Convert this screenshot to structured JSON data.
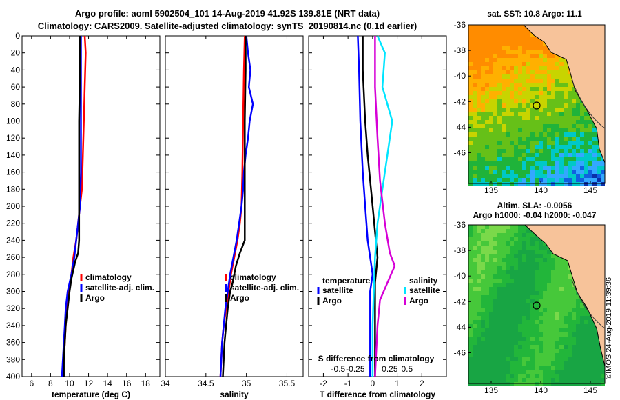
{
  "header": {
    "line1": "Argo profile: aoml 5902504_101 14-Aug-2019 41.92S 139.81E (NRT data)",
    "line2": "Climatology: CARS2009. Satellite-adjusted climatology: synTS_20190814.nc (0.1d earlier)"
  },
  "credit": "©IMOS 24-Aug-2019 11:39:36",
  "colors": {
    "clim": "#ff0000",
    "sat": "#0000ff",
    "argo": "#000000",
    "sat_s": "#00e5ff",
    "argo_s": "#d600d6"
  },
  "chart_data": [
    {
      "type": "line",
      "name": "temperature",
      "xlabel": "temperature (deg C)",
      "xlim": [
        5,
        19.5
      ],
      "xticks": [
        6,
        8,
        10,
        12,
        14,
        16,
        18
      ],
      "xticklabels": [
        "6",
        "8",
        "10",
        "12",
        "14",
        "16",
        "18"
      ],
      "ylim": [
        0,
        400
      ],
      "yticklabels": [
        "0",
        "20",
        "40",
        "60",
        "80",
        "100",
        "120",
        "140",
        "160",
        "180",
        "200",
        "220",
        "240",
        "260",
        "280",
        "300",
        "320",
        "340",
        "360",
        "380",
        "400"
      ],
      "legend": [
        "climatology",
        "satellite-adj. clim.",
        "Argo"
      ],
      "series": [
        {
          "name": "climatology",
          "color": "clim",
          "points": [
            [
              11.6,
              0
            ],
            [
              11.7,
              20
            ],
            [
              11.6,
              60
            ],
            [
              11.5,
              100
            ],
            [
              11.4,
              140
            ],
            [
              11.3,
              180
            ],
            [
              11.1,
              200
            ],
            [
              10.9,
              220
            ],
            [
              10.7,
              240
            ],
            [
              10.4,
              260
            ],
            [
              10.2,
              280
            ],
            [
              9.9,
              300
            ],
            [
              9.7,
              320
            ],
            [
              9.6,
              340
            ],
            [
              9.5,
              360
            ],
            [
              9.4,
              380
            ],
            [
              9.3,
              400
            ]
          ]
        },
        {
          "name": "satellite-adj. clim.",
          "color": "sat",
          "points": [
            [
              11.2,
              0
            ],
            [
              11.2,
              40
            ],
            [
              11.2,
              100
            ],
            [
              11.2,
              160
            ],
            [
              11.1,
              200
            ],
            [
              10.9,
              220
            ],
            [
              10.7,
              240
            ],
            [
              10.5,
              260
            ],
            [
              10.2,
              280
            ],
            [
              9.8,
              300
            ],
            [
              9.6,
              320
            ],
            [
              9.5,
              340
            ],
            [
              9.4,
              360
            ],
            [
              9.3,
              380
            ],
            [
              9.2,
              400
            ]
          ]
        },
        {
          "name": "Argo",
          "color": "argo",
          "points": [
            [
              11.1,
              0
            ],
            [
              11.1,
              40
            ],
            [
              11.0,
              100
            ],
            [
              11.0,
              160
            ],
            [
              11.0,
              200
            ],
            [
              11.0,
              220
            ],
            [
              11.0,
              240
            ],
            [
              10.9,
              255
            ],
            [
              10.6,
              265
            ],
            [
              10.2,
              285
            ],
            [
              10.0,
              300
            ],
            [
              9.8,
              320
            ],
            [
              9.6,
              340
            ],
            [
              9.5,
              360
            ],
            [
              9.4,
              380
            ],
            [
              9.4,
              400
            ]
          ]
        }
      ]
    },
    {
      "type": "line",
      "name": "salinity",
      "xlabel": "salinity",
      "xlim": [
        34,
        35.7
      ],
      "xticks": [
        34,
        34.5,
        35,
        35.5
      ],
      "xticklabels": [
        "34",
        "34.5",
        "35",
        "35.5"
      ],
      "ylim": [
        0,
        400
      ],
      "legend": [
        "climatology",
        "satellite-adj. clim.",
        "Argo"
      ],
      "series": [
        {
          "name": "climatology",
          "color": "clim",
          "points": [
            [
              34.98,
              0
            ],
            [
              34.97,
              40
            ],
            [
              34.96,
              100
            ],
            [
              34.95,
              160
            ],
            [
              34.94,
              200
            ],
            [
              34.92,
              220
            ],
            [
              34.89,
              240
            ],
            [
              34.85,
              260
            ],
            [
              34.81,
              280
            ],
            [
              34.78,
              300
            ],
            [
              34.75,
              320
            ],
            [
              34.72,
              340
            ],
            [
              34.7,
              360
            ],
            [
              34.69,
              380
            ],
            [
              34.68,
              400
            ]
          ]
        },
        {
          "name": "satellite-adj. clim.",
          "color": "sat",
          "points": [
            [
              35.0,
              0
            ],
            [
              35.02,
              20
            ],
            [
              35.05,
              40
            ],
            [
              35.03,
              60
            ],
            [
              35.08,
              80
            ],
            [
              35.04,
              100
            ],
            [
              35.02,
              120
            ],
            [
              34.99,
              140
            ],
            [
              34.97,
              160
            ],
            [
              34.96,
              180
            ],
            [
              34.94,
              200
            ],
            [
              34.91,
              220
            ],
            [
              34.88,
              240
            ],
            [
              34.84,
              260
            ],
            [
              34.8,
              280
            ],
            [
              34.77,
              300
            ],
            [
              34.74,
              320
            ],
            [
              34.72,
              340
            ],
            [
              34.7,
              360
            ],
            [
              34.69,
              380
            ],
            [
              34.68,
              400
            ]
          ]
        },
        {
          "name": "Argo",
          "color": "argo",
          "points": [
            [
              34.99,
              0
            ],
            [
              34.99,
              40
            ],
            [
              34.98,
              100
            ],
            [
              34.98,
              160
            ],
            [
              34.98,
              200
            ],
            [
              34.98,
              220
            ],
            [
              34.98,
              240
            ],
            [
              34.92,
              255
            ],
            [
              34.87,
              270
            ],
            [
              34.83,
              290
            ],
            [
              34.8,
              300
            ],
            [
              34.77,
              320
            ],
            [
              34.75,
              340
            ],
            [
              34.73,
              360
            ],
            [
              34.72,
              380
            ],
            [
              34.71,
              400
            ]
          ]
        }
      ]
    },
    {
      "type": "line",
      "name": "difference",
      "xlabel": "T difference from climatology",
      "xlabel2": "S difference from climatology",
      "xlim": [
        -2.6,
        3.0
      ],
      "xticks": [
        -2,
        -1,
        0,
        1,
        2
      ],
      "xticklabels": [
        "-2",
        "-1",
        "0",
        "1",
        "2"
      ],
      "sxticks": [
        -1.4,
        -0.7,
        0.7,
        1.4
      ],
      "sxticklabels": [
        "-0.5",
        "-0.25",
        "0.25",
        "0.5"
      ],
      "ylim": [
        0,
        400
      ],
      "legend_t_title": "temperature",
      "legend_s_title": "salinity",
      "legend": [
        "satellite",
        "Argo",
        "satellite",
        "Argo"
      ],
      "series": [
        {
          "name": "T satellite",
          "color": "sat",
          "points": [
            [
              -0.6,
              0
            ],
            [
              -0.55,
              40
            ],
            [
              -0.5,
              100
            ],
            [
              -0.4,
              160
            ],
            [
              -0.3,
              200
            ],
            [
              -0.2,
              240
            ],
            [
              -0.1,
              260
            ],
            [
              0.0,
              280
            ],
            [
              -0.1,
              300
            ],
            [
              -0.1,
              340
            ],
            [
              -0.1,
              400
            ]
          ]
        },
        {
          "name": "T Argo",
          "color": "argo",
          "points": [
            [
              -0.4,
              0
            ],
            [
              -0.4,
              40
            ],
            [
              -0.3,
              100
            ],
            [
              -0.2,
              140
            ],
            [
              -0.1,
              170
            ],
            [
              0.0,
              200
            ],
            [
              0.1,
              230
            ],
            [
              0.2,
              260
            ],
            [
              0.1,
              290
            ],
            [
              0.1,
              320
            ],
            [
              0.1,
              360
            ],
            [
              0.1,
              400
            ]
          ]
        },
        {
          "name": "S satellite",
          "color": "sat_s",
          "points": [
            [
              0.2,
              0
            ],
            [
              0.5,
              20
            ],
            [
              0.4,
              60
            ],
            [
              0.8,
              100
            ],
            [
              0.6,
              140
            ],
            [
              0.4,
              180
            ],
            [
              0.2,
              220
            ],
            [
              0.1,
              260
            ],
            [
              0.05,
              300
            ],
            [
              0.0,
              340
            ],
            [
              0.0,
              400
            ]
          ]
        },
        {
          "name": "S Argo",
          "color": "argo_s",
          "points": [
            [
              0.1,
              0
            ],
            [
              0.1,
              60
            ],
            [
              0.2,
              120
            ],
            [
              0.3,
              170
            ],
            [
              0.5,
              220
            ],
            [
              0.7,
              255
            ],
            [
              0.9,
              270
            ],
            [
              0.6,
              290
            ],
            [
              0.3,
              310
            ],
            [
              0.2,
              340
            ],
            [
              0.1,
              400
            ]
          ]
        }
      ]
    },
    {
      "type": "heatmap",
      "name": "sst-map",
      "title": "sat. SST: 10.8 Argo: 11.1",
      "xticklabels": [
        "135",
        "140",
        "145"
      ],
      "yticklabels": [
        "-36",
        "-38",
        "-40",
        "-42",
        "-44",
        "-46"
      ]
    },
    {
      "type": "heatmap",
      "name": "sla-map",
      "title": "Altim. SLA: -0.0056",
      "subtitle": "Argo h1000: -0.04 h2000: -0.047",
      "xticklabels": [
        "135",
        "140",
        "145"
      ],
      "yticklabels": [
        "-36",
        "-38",
        "-40",
        "-42",
        "-44",
        "-46"
      ]
    }
  ]
}
